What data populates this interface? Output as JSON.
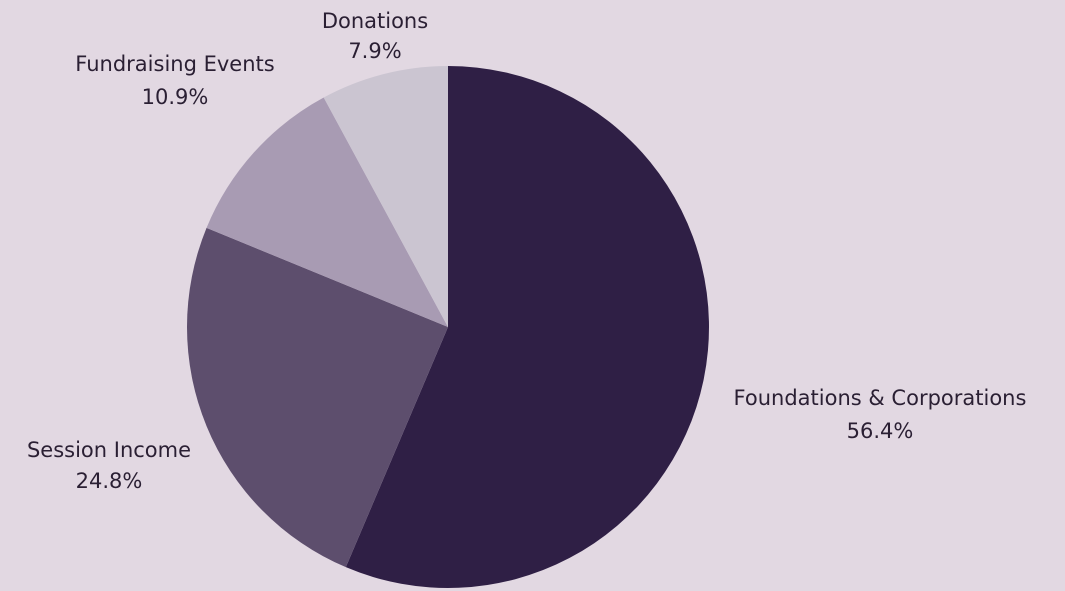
{
  "chart_data": {
    "type": "pie",
    "title": "",
    "start_angle_deg": 0,
    "direction": "clockwise",
    "slices": [
      {
        "label": "Foundations & Corporations",
        "value": 56.4,
        "display": "56.4%",
        "color": "#2f1f45"
      },
      {
        "label": "Session Income",
        "value": 24.8,
        "display": "24.8%",
        "color": "#5d4e6d"
      },
      {
        "label": "Fundraising Events",
        "value": 10.9,
        "display": "10.9%",
        "color": "#a89bb3"
      },
      {
        "label": "Donations",
        "value": 7.9,
        "display": "7.9%",
        "color": "#cbc5d1"
      }
    ],
    "legend": "none"
  }
}
